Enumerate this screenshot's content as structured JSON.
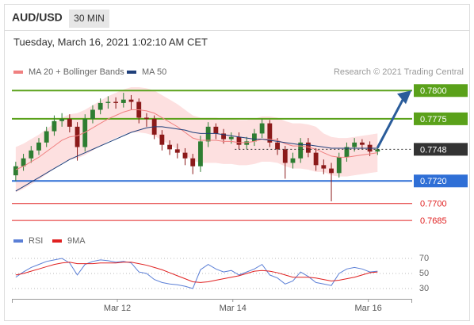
{
  "header": {
    "symbol": "AUD/USD",
    "timeframe": "30 MIN",
    "timestamp": "Tuesday, March 16, 2021 1:02:10 AM CET",
    "source": "Research © 2021 Trading Central"
  },
  "chart_data": [
    {
      "type": "candlestick",
      "x": [
        0,
        1,
        2,
        3,
        4,
        5,
        6,
        7,
        8,
        9,
        10,
        11,
        12,
        13,
        14,
        15,
        16,
        17,
        18,
        19,
        20,
        21,
        22,
        23,
        24,
        25,
        26,
        27,
        28,
        29,
        30,
        31,
        32,
        33,
        34,
        35,
        36,
        37,
        38,
        39,
        40,
        41,
        42,
        43,
        44,
        45,
        46,
        47
      ],
      "xlim": [
        -0.5,
        51.5
      ],
      "ylim": [
        0.7676,
        0.781
      ],
      "open": [
        0.7725,
        0.7733,
        0.774,
        0.7747,
        0.7754,
        0.7764,
        0.7773,
        0.7775,
        0.7768,
        0.775,
        0.7775,
        0.7783,
        0.7789,
        0.779,
        0.7789,
        0.7792,
        0.779,
        0.7776,
        0.7775,
        0.7761,
        0.7752,
        0.7748,
        0.7745,
        0.774,
        0.7733,
        0.7755,
        0.7768,
        0.7762,
        0.7757,
        0.7759,
        0.7752,
        0.7755,
        0.7762,
        0.7771,
        0.7754,
        0.7748,
        0.7736,
        0.774,
        0.7754,
        0.7745,
        0.7734,
        0.7731,
        0.7727,
        0.7741,
        0.775,
        0.7754,
        0.7752,
        0.7746
      ],
      "high": [
        0.7737,
        0.7744,
        0.7751,
        0.7758,
        0.7768,
        0.7778,
        0.778,
        0.7779,
        0.7772,
        0.7779,
        0.7787,
        0.7793,
        0.7795,
        0.7794,
        0.7798,
        0.7796,
        0.7793,
        0.778,
        0.7778,
        0.7765,
        0.7756,
        0.7753,
        0.7749,
        0.7744,
        0.776,
        0.7772,
        0.7771,
        0.7766,
        0.7763,
        0.7763,
        0.7759,
        0.7766,
        0.7775,
        0.7774,
        0.7758,
        0.7751,
        0.7745,
        0.7758,
        0.7758,
        0.7749,
        0.7739,
        0.7736,
        0.7745,
        0.7754,
        0.7758,
        0.7757,
        0.7755,
        0.7751
      ],
      "low": [
        0.772,
        0.7729,
        0.7736,
        0.7743,
        0.775,
        0.776,
        0.7768,
        0.7763,
        0.7738,
        0.7746,
        0.7771,
        0.7779,
        0.7784,
        0.7784,
        0.7785,
        0.7783,
        0.7771,
        0.7768,
        0.7757,
        0.7747,
        0.7743,
        0.774,
        0.7734,
        0.7726,
        0.7728,
        0.775,
        0.7757,
        0.7753,
        0.7753,
        0.7748,
        0.7748,
        0.7751,
        0.7758,
        0.775,
        0.7743,
        0.7722,
        0.7731,
        0.7736,
        0.7741,
        0.7729,
        0.7726,
        0.7702,
        0.7723,
        0.7737,
        0.7746,
        0.7748,
        0.7742,
        0.7743
      ],
      "close": [
        0.7733,
        0.774,
        0.7747,
        0.7754,
        0.7764,
        0.7773,
        0.7775,
        0.7768,
        0.775,
        0.7775,
        0.7783,
        0.7789,
        0.779,
        0.7789,
        0.7792,
        0.779,
        0.7776,
        0.7775,
        0.7761,
        0.7752,
        0.7748,
        0.7745,
        0.774,
        0.7733,
        0.7755,
        0.7768,
        0.7762,
        0.7757,
        0.7759,
        0.7752,
        0.7755,
        0.7762,
        0.7771,
        0.7754,
        0.7748,
        0.7736,
        0.774,
        0.7754,
        0.7745,
        0.7734,
        0.7731,
        0.7727,
        0.7741,
        0.775,
        0.7754,
        0.7752,
        0.7746,
        0.7748
      ],
      "up_color": "#2e7d32",
      "down_color": "#8b1a1a",
      "series": [
        {
          "name": "MA 20 + Bollinger Bands",
          "color": "#f08080",
          "band_color": "#fde0e0",
          "values": [
            0.773,
            0.7733,
            0.7737,
            0.7741,
            0.7746,
            0.7751,
            0.7756,
            0.7759,
            0.776,
            0.7763,
            0.7767,
            0.7771,
            0.7775,
            0.7778,
            0.7781,
            0.7783,
            0.7783,
            0.7782,
            0.778,
            0.7776,
            0.7772,
            0.7768,
            0.7763,
            0.7758,
            0.7756,
            0.7756,
            0.7756,
            0.7755,
            0.7755,
            0.7754,
            0.7754,
            0.7755,
            0.7757,
            0.7757,
            0.7756,
            0.7753,
            0.7751,
            0.7751,
            0.775,
            0.7748,
            0.7745,
            0.7742,
            0.7741,
            0.7741,
            0.7742,
            0.7743,
            0.7744,
            0.7745
          ],
          "upper": [
            0.775,
            0.7753,
            0.7757,
            0.7761,
            0.7766,
            0.7771,
            0.7776,
            0.7779,
            0.778,
            0.7783,
            0.7787,
            0.7791,
            0.7795,
            0.7798,
            0.7801,
            0.7803,
            0.7803,
            0.7802,
            0.78,
            0.7796,
            0.7792,
            0.7788,
            0.7783,
            0.7778,
            0.7776,
            0.7776,
            0.7776,
            0.7775,
            0.7775,
            0.7774,
            0.7774,
            0.7775,
            0.7777,
            0.7777,
            0.7776,
            0.7773,
            0.7771,
            0.7771,
            0.777,
            0.7768,
            0.7762,
            0.7759,
            0.7758,
            0.7758,
            0.7759,
            0.776,
            0.7761,
            0.7762
          ],
          "lower": [
            0.771,
            0.7713,
            0.7717,
            0.7721,
            0.7726,
            0.7731,
            0.7736,
            0.7739,
            0.774,
            0.7743,
            0.7747,
            0.7751,
            0.7755,
            0.7758,
            0.7761,
            0.7763,
            0.7763,
            0.7762,
            0.776,
            0.7756,
            0.7752,
            0.7748,
            0.7743,
            0.7738,
            0.7736,
            0.7736,
            0.7736,
            0.7735,
            0.7735,
            0.7734,
            0.7734,
            0.7735,
            0.7737,
            0.7737,
            0.7736,
            0.7733,
            0.7731,
            0.7731,
            0.773,
            0.7728,
            0.7728,
            0.7725,
            0.7724,
            0.7724,
            0.7725,
            0.7726,
            0.7727,
            0.7728
          ]
        },
        {
          "name": "MA 50",
          "color": "#1f3f7a",
          "values": [
            0.7711,
            0.7715,
            0.7719,
            0.7723,
            0.7727,
            0.7731,
            0.7735,
            0.7739,
            0.7742,
            0.7745,
            0.7748,
            0.7751,
            0.7754,
            0.7757,
            0.776,
            0.7763,
            0.7765,
            0.7767,
            0.7768,
            0.7768,
            0.7767,
            0.7766,
            0.7765,
            0.7763,
            0.7762,
            0.7762,
            0.7762,
            0.7761,
            0.776,
            0.7759,
            0.7758,
            0.7757,
            0.7757,
            0.7756,
            0.7755,
            0.7754,
            0.7753,
            0.7752,
            0.7752,
            0.7751,
            0.775,
            0.7749,
            0.7749,
            0.7749,
            0.7749,
            0.7749,
            0.7749,
            0.7749
          ]
        }
      ],
      "levels": [
        {
          "value": 0.78,
          "label": "0.7800",
          "color": "#5aa11a",
          "filled": true
        },
        {
          "value": 0.7775,
          "label": "0.7775",
          "color": "#5aa11a",
          "filled": true
        },
        {
          "value": 0.772,
          "label": "0.7720",
          "color": "#2f6fd6",
          "filled": true
        },
        {
          "value": 0.77,
          "label": "0.7700",
          "color": "#e02020",
          "filled": false
        },
        {
          "value": 0.7685,
          "label": "0.7685",
          "color": "#e02020",
          "filled": false
        }
      ],
      "last_price": {
        "value": 0.7748,
        "label": "0.7748",
        "color": "#333333"
      },
      "arrow_color": "#2a5c9a"
    },
    {
      "type": "line",
      "x": [
        0,
        1,
        2,
        3,
        4,
        5,
        6,
        7,
        8,
        9,
        10,
        11,
        12,
        13,
        14,
        15,
        16,
        17,
        18,
        19,
        20,
        21,
        22,
        23,
        24,
        25,
        26,
        27,
        28,
        29,
        30,
        31,
        32,
        33,
        34,
        35,
        36,
        37,
        38,
        39,
        40,
        41,
        42,
        43,
        44,
        45,
        46,
        47
      ],
      "xlim": [
        -0.5,
        51.5
      ],
      "xticks": [
        {
          "value": 13.2,
          "label": "Mar 12"
        },
        {
          "value": 28.2,
          "label": "Mar 14"
        },
        {
          "value": 45.8,
          "label": "Mar 16"
        }
      ],
      "ylim": [
        20,
        85
      ],
      "yticks": [
        70,
        50,
        30
      ],
      "grid": true,
      "series": [
        {
          "name": "RSI",
          "color": "#5b7fd6",
          "values": [
            45,
            52,
            58,
            62,
            66,
            68,
            70,
            64,
            48,
            62,
            66,
            68,
            67,
            65,
            66,
            64,
            52,
            50,
            42,
            38,
            36,
            35,
            33,
            30,
            55,
            62,
            56,
            52,
            54,
            48,
            52,
            56,
            62,
            48,
            44,
            36,
            40,
            52,
            46,
            38,
            36,
            34,
            50,
            56,
            58,
            56,
            52,
            53
          ]
        },
        {
          "name": "9MA",
          "color": "#e02020",
          "values": [
            48,
            50,
            53,
            56,
            59,
            62,
            64,
            65,
            63,
            63,
            63,
            64,
            64,
            64,
            65,
            65,
            63,
            61,
            58,
            55,
            51,
            47,
            43,
            39,
            38,
            39,
            41,
            43,
            45,
            47,
            50,
            53,
            54,
            53,
            51,
            48,
            45,
            45,
            45,
            44,
            42,
            40,
            41,
            43,
            45,
            48,
            51,
            52
          ]
        }
      ]
    }
  ]
}
